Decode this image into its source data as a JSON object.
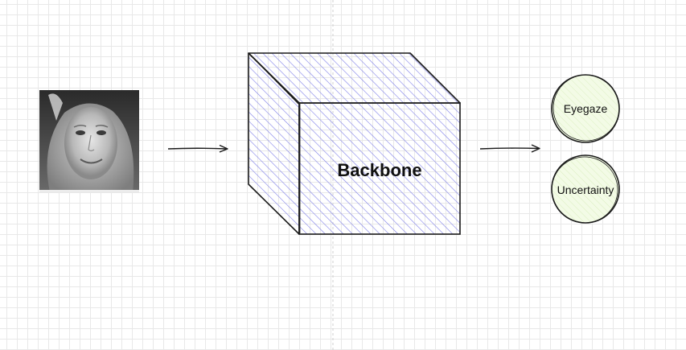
{
  "diagram": {
    "input_image": {
      "alt": "Grayscale face photo"
    },
    "backbone": {
      "label": "Backbone"
    },
    "outputs": [
      {
        "label": "Eyegaze"
      },
      {
        "label": "Uncertainty"
      }
    ]
  },
  "colors": {
    "hatch": "#8080e8",
    "output_fill": "#eef8dc",
    "stroke": "#1a1a1a",
    "guide": "#cfcfcf"
  },
  "icons": {
    "arrow": "arrow-right-icon"
  }
}
